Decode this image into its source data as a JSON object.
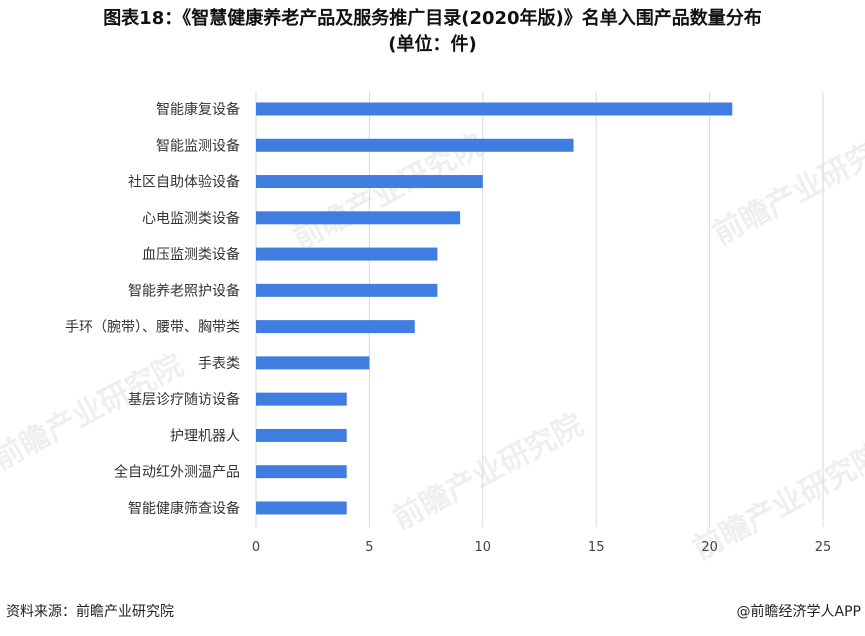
{
  "title_line1": "图表18：《智慧健康养老产品及服务推广目录(2020年版)》名单入围产品数量分布",
  "title_line2": "(单位：件)",
  "footer": {
    "source": "资料来源：前瞻产业研究院",
    "credit": "@前瞻经济学人APP"
  },
  "watermark": "前瞻产业研究院",
  "colors": {
    "bar": "#3f7ee0",
    "grid": "#d9d9d9"
  },
  "chart_data": {
    "type": "bar",
    "orientation": "horizontal",
    "categories": [
      "智能康复设备",
      "智能监测设备",
      "社区自助体验设备",
      "心电监测类设备",
      "血压监测类设备",
      "智能养老照护设备",
      "手环（腕带）、腰带、胸带类",
      "手表类",
      "基层诊疗随访设备",
      "护理机器人",
      "全自动红外测温产品",
      "智能健康筛查设备"
    ],
    "values": [
      21,
      14,
      10,
      9,
      8,
      8,
      7,
      5,
      4,
      4,
      4,
      4
    ],
    "xlim": [
      0,
      25
    ],
    "xticks": [
      0,
      5,
      10,
      15,
      20,
      25
    ],
    "grid": true,
    "legend": "none"
  }
}
